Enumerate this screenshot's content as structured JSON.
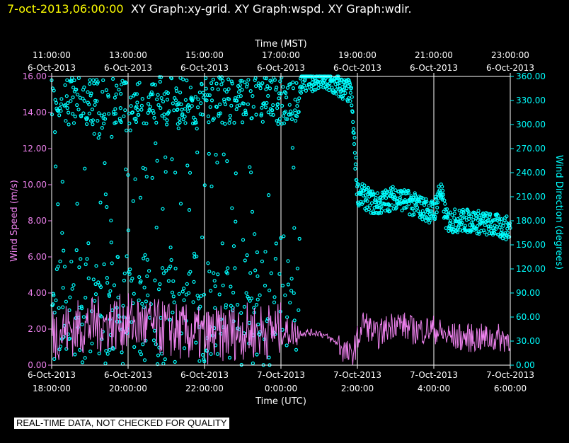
{
  "header": {
    "timestamp": "7-oct-2013,06:00:00",
    "graph_titles": "XY Graph:xy-grid.  XY Graph:wspd.  XY Graph:wdir."
  },
  "disclaimer": "REAL-TIME DATA, NOT CHECKED FOR QUALITY",
  "colors": {
    "wspd": "#ee82ee",
    "wdir": "#00ffff",
    "timestamp": "#ffff00",
    "grid": "#ffffff"
  },
  "chart_data": {
    "type": "scatter",
    "top_axis": {
      "label": "Time (MST)",
      "ticks": [
        {
          "time": "11:00:00",
          "date": "6-Oct-2013"
        },
        {
          "time": "13:00:00",
          "date": "6-Oct-2013"
        },
        {
          "time": "15:00:00",
          "date": "6-Oct-2013"
        },
        {
          "time": "17:00:00",
          "date": "6-Oct-2013"
        },
        {
          "time": "19:00:00",
          "date": "6-Oct-2013"
        },
        {
          "time": "21:00:00",
          "date": "6-Oct-2013"
        },
        {
          "time": "23:00:00",
          "date": "6-Oct-2013"
        }
      ]
    },
    "bottom_axis": {
      "label": "Time (UTC)",
      "ticks": [
        {
          "date": "6-Oct-2013",
          "time": "18:00:00"
        },
        {
          "date": "6-Oct-2013",
          "time": "20:00:00"
        },
        {
          "date": "6-Oct-2013",
          "time": "22:00:00"
        },
        {
          "date": "7-Oct-2013",
          "time": "0:00:00"
        },
        {
          "date": "7-Oct-2013",
          "time": "2:00:00"
        },
        {
          "date": "7-Oct-2013",
          "time": "4:00:00"
        },
        {
          "date": "7-Oct-2013",
          "time": "6:00:00"
        }
      ],
      "xlim": [
        "2013-10-06 18:00",
        "2013-10-07 06:00"
      ]
    },
    "left_axis": {
      "label": "Wind Speed (m/s)",
      "ylim": [
        0,
        16
      ],
      "ticks": [
        "0.00",
        "2.00",
        "4.00",
        "6.00",
        "8.00",
        "10.00",
        "12.00",
        "14.00",
        "16.00"
      ]
    },
    "right_axis": {
      "label": "Wind Direction (degrees)",
      "ylim": [
        0,
        360
      ],
      "ticks": [
        "0.00",
        "30.00",
        "60.00",
        "90.00",
        "120.00",
        "150.00",
        "180.00",
        "210.00",
        "240.00",
        "270.00",
        "300.00",
        "330.00",
        "360.00"
      ]
    },
    "grid": "vertical",
    "series": [
      {
        "axis": "left",
        "style": "line",
        "x": [
          "2013-10-06 18:00",
          "2013-10-06 19:00",
          "2013-10-06 20:00",
          "2013-10-06 21:00",
          "2013-10-06 22:00",
          "2013-10-06 23:00",
          "2013-10-07 00:00",
          "2013-10-07 00:30",
          "2013-10-07 01:00",
          "2013-10-07 01:30",
          "2013-10-07 01:50",
          "2013-10-07 02:10",
          "2013-10-07 02:30",
          "2013-10-07 03:00",
          "2013-10-07 03:30",
          "2013-10-07 04:00",
          "2013-10-07 04:20",
          "2013-10-07 05:00",
          "2013-10-07 06:00"
        ],
        "values": [
          1.8,
          2.2,
          2.4,
          2.0,
          1.6,
          1.9,
          1.9,
          1.8,
          1.8,
          1.2,
          0.4,
          2.4,
          1.6,
          2.4,
          1.9,
          2.0,
          1.6,
          1.5,
          1.5
        ]
      },
      {
        "axis": "right",
        "style": "points",
        "x": [
          "2013-10-06 18:00",
          "2013-10-06 19:00",
          "2013-10-06 20:00",
          "2013-10-06 21:00",
          "2013-10-06 22:00",
          "2013-10-06 23:00",
          "2013-10-07 00:00",
          "2013-10-07 01:00",
          "2013-10-07 01:50",
          "2013-10-07 02:00",
          "2013-10-07 02:30",
          "2013-10-07 03:00",
          "2013-10-07 03:30",
          "2013-10-07 04:00",
          "2013-10-07 04:10",
          "2013-10-07 04:20",
          "2013-10-07 05:00",
          "2013-10-07 05:30",
          "2013-10-07 06:00"
        ],
        "values": [
          50,
          320,
          60,
          330,
          40,
          335,
          350,
          358,
          340,
          215,
          200,
          210,
          200,
          190,
          220,
          180,
          180,
          175,
          170
        ]
      }
    ]
  }
}
